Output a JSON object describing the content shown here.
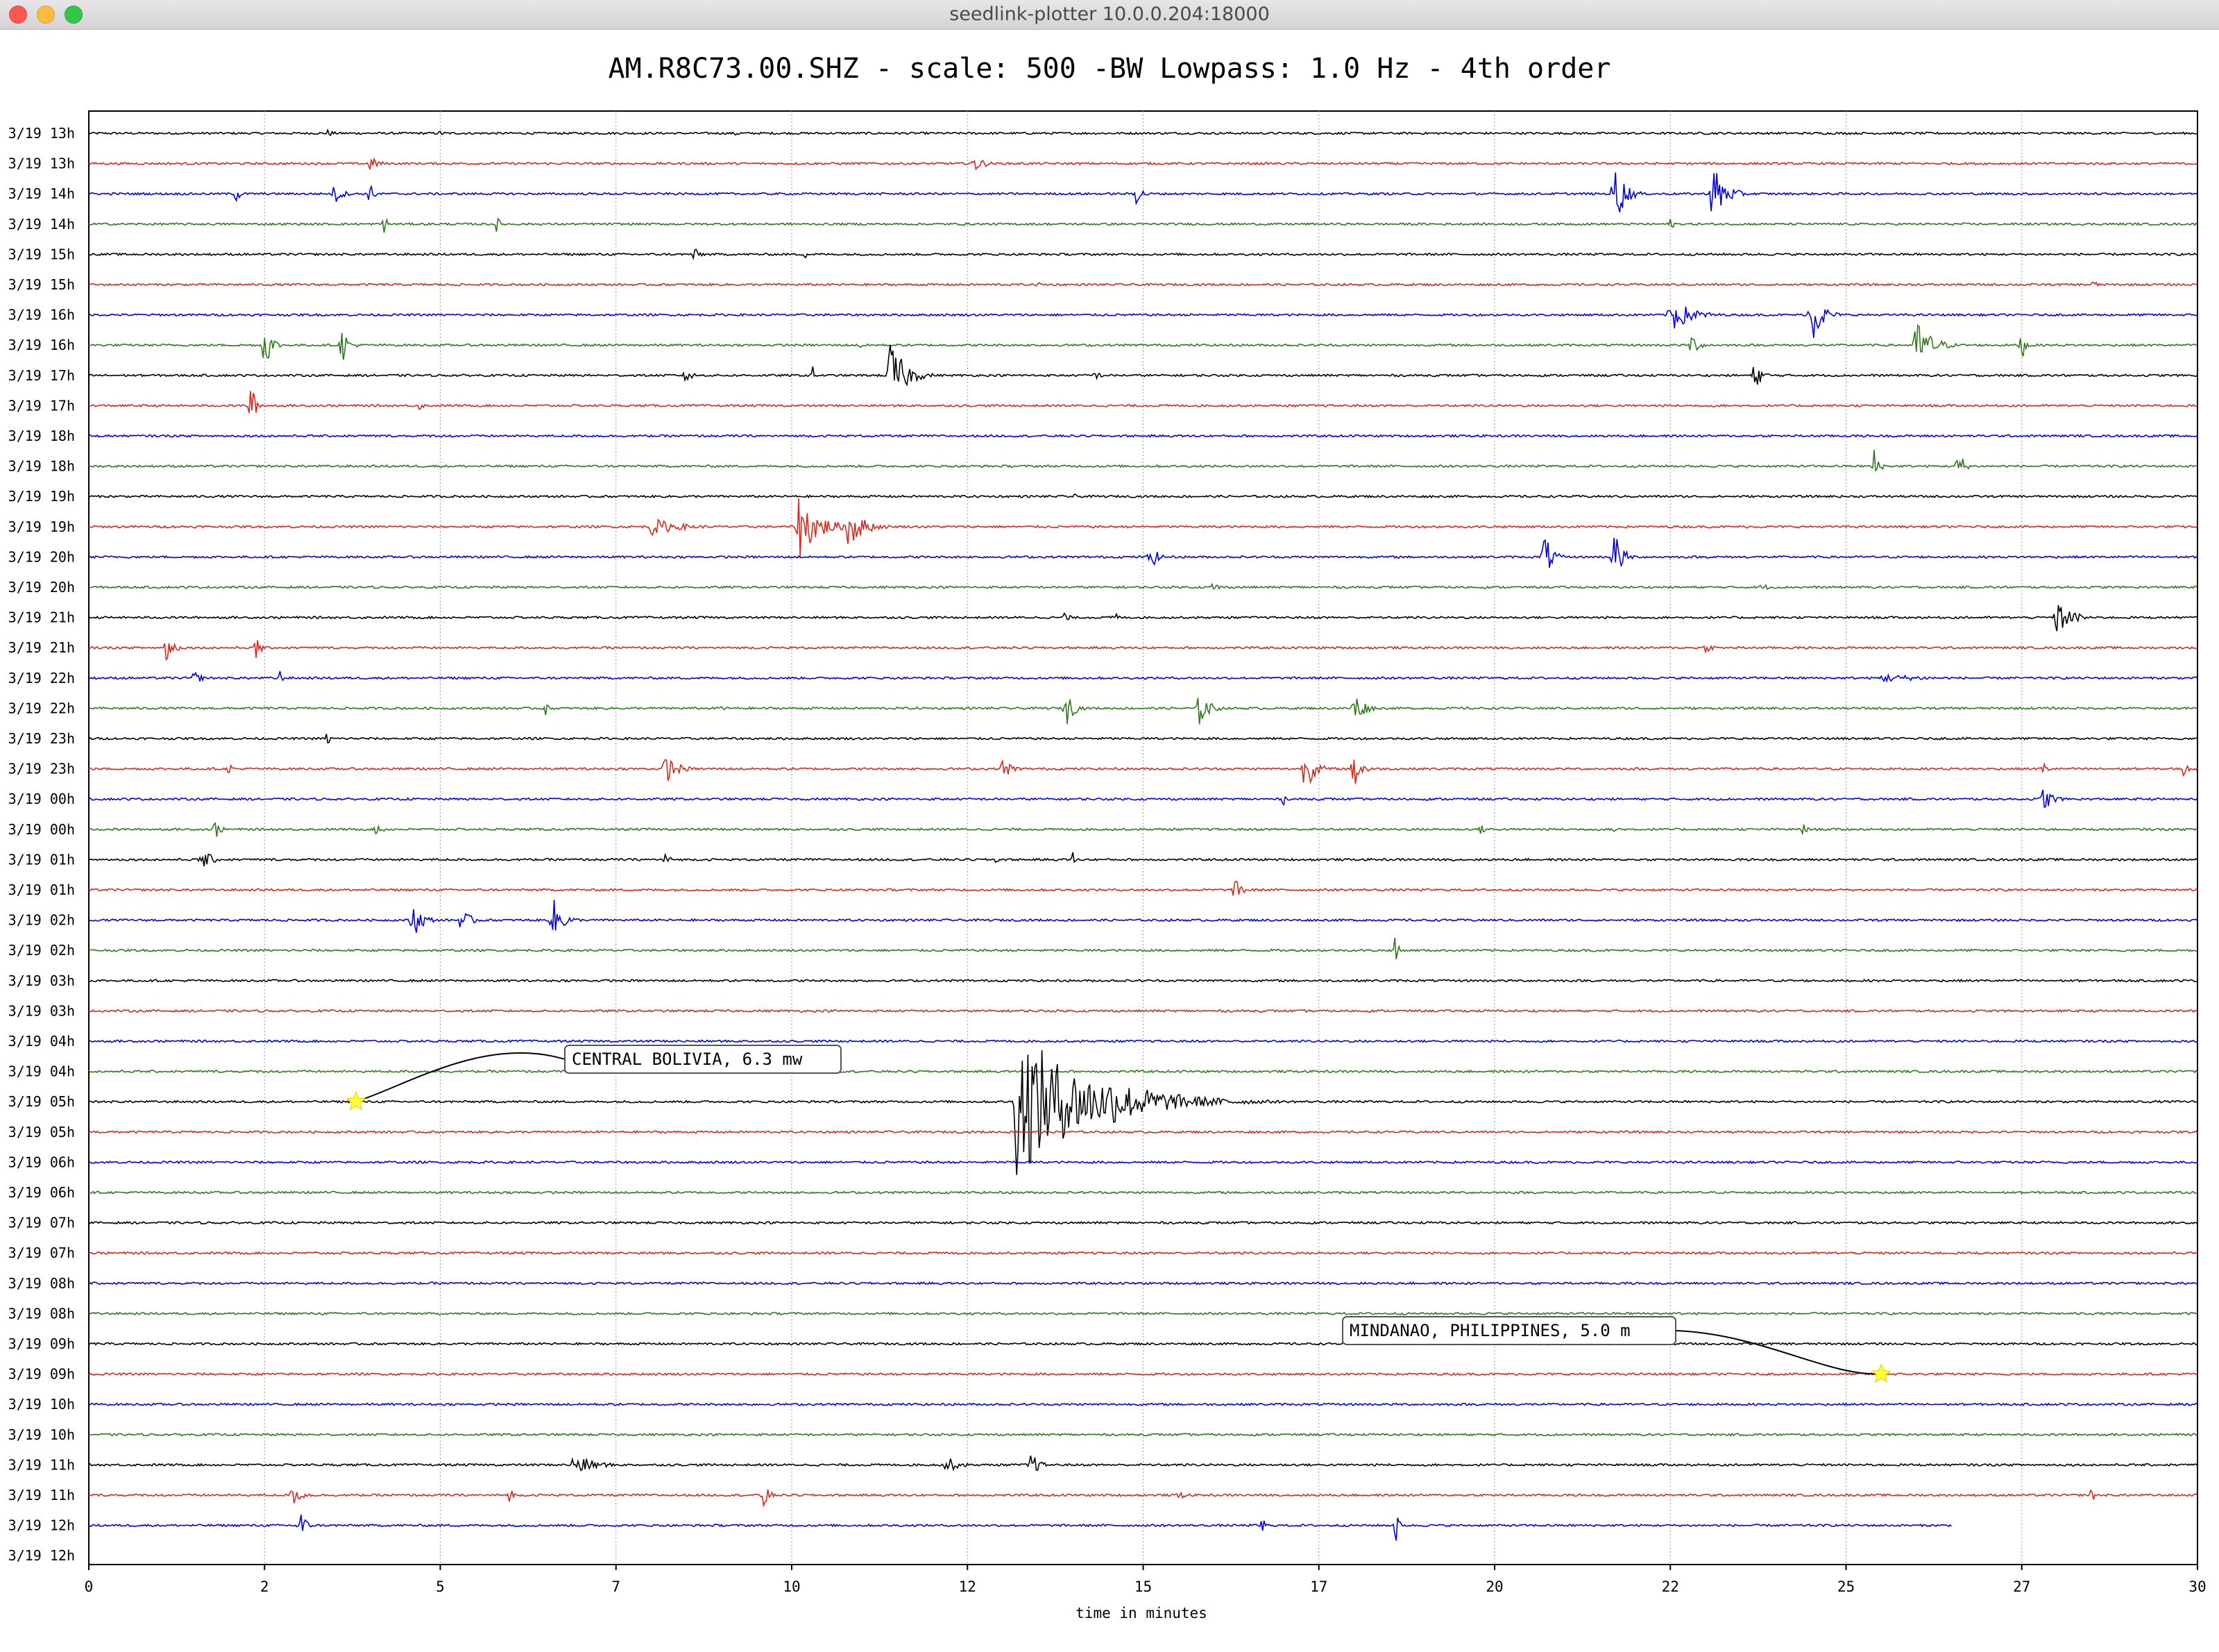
{
  "window": {
    "title": "seedlink-plotter 10.0.0.204:18000",
    "traffic_lights": [
      {
        "name": "close-button",
        "color": "#fc5753"
      },
      {
        "name": "minimize-button",
        "color": "#fdbc40"
      },
      {
        "name": "zoom-button",
        "color": "#33c748"
      }
    ]
  },
  "chart_data": {
    "type": "line",
    "title": "AM.R8C73.00.SHZ - scale: 500 -BW Lowpass: 1.0 Hz - 4th order",
    "xlabel": "time in minutes",
    "ylabel": "",
    "xlim": [
      0,
      30
    ],
    "x_tick_labels": [
      "0",
      "2",
      "5",
      "7",
      "10",
      "12",
      "15",
      "17",
      "20",
      "22",
      "25",
      "27",
      "30"
    ],
    "x_tick_values": [
      0,
      2.5,
      5,
      7.5,
      10,
      12.5,
      15,
      17.5,
      20,
      22.5,
      25,
      27.5,
      30
    ],
    "grid": "vertical",
    "trace_colors": [
      "#000000",
      "#d62a1e",
      "#0000ee",
      "#2f7a1f"
    ],
    "rows": [
      "3/19 13h",
      "3/19 13h",
      "3/19 14h",
      "3/19 14h",
      "3/19 15h",
      "3/19 15h",
      "3/19 16h",
      "3/19 16h",
      "3/19 17h",
      "3/19 17h",
      "3/19 18h",
      "3/19 18h",
      "3/19 19h",
      "3/19 19h",
      "3/19 20h",
      "3/19 20h",
      "3/19 21h",
      "3/19 21h",
      "3/19 22h",
      "3/19 22h",
      "3/19 23h",
      "3/19 23h",
      "3/19 00h",
      "3/19 00h",
      "3/19 01h",
      "3/19 01h",
      "3/19 02h",
      "3/19 02h",
      "3/19 03h",
      "3/19 03h",
      "3/19 04h",
      "3/19 04h",
      "3/19 05h",
      "3/19 05h",
      "3/19 06h",
      "3/19 06h",
      "3/19 07h",
      "3/19 07h",
      "3/19 08h",
      "3/19 08h",
      "3/19 09h",
      "3/19 09h",
      "3/19 10h",
      "3/19 10h",
      "3/19 11h",
      "3/19 11h",
      "3/19 12h",
      "3/19 12h"
    ],
    "last_row_end_minute": 26.5,
    "bursts": [
      {
        "row": 0,
        "t": 3.4,
        "a": 0.25,
        "w": 0.3
      },
      {
        "row": 0,
        "t": 5.0,
        "a": 0.2,
        "w": 0.2
      },
      {
        "row": 0,
        "t": 9.2,
        "a": 0.2,
        "w": 0.3
      },
      {
        "row": 1,
        "t": 4.0,
        "a": 0.5,
        "w": 0.4
      },
      {
        "row": 1,
        "t": 12.6,
        "a": 0.6,
        "w": 0.4
      },
      {
        "row": 2,
        "t": 2.1,
        "a": 0.6,
        "w": 0.2
      },
      {
        "row": 2,
        "t": 3.5,
        "a": 0.8,
        "w": 0.3
      },
      {
        "row": 2,
        "t": 4.0,
        "a": 0.7,
        "w": 0.2
      },
      {
        "row": 2,
        "t": 14.9,
        "a": 0.7,
        "w": 0.3
      },
      {
        "row": 2,
        "t": 21.7,
        "a": 2.4,
        "w": 0.4
      },
      {
        "row": 2,
        "t": 23.1,
        "a": 2.2,
        "w": 0.5
      },
      {
        "row": 3,
        "t": 4.2,
        "a": 0.6,
        "w": 0.2
      },
      {
        "row": 3,
        "t": 5.8,
        "a": 0.5,
        "w": 0.2
      },
      {
        "row": 3,
        "t": 22.5,
        "a": 0.4,
        "w": 0.2
      },
      {
        "row": 4,
        "t": 8.6,
        "a": 0.5,
        "w": 0.3
      },
      {
        "row": 4,
        "t": 10.2,
        "a": 0.3,
        "w": 0.1
      },
      {
        "row": 5,
        "t": 13.5,
        "a": 0.2,
        "w": 0.3
      },
      {
        "row": 5,
        "t": 28.5,
        "a": 0.3,
        "w": 0.3
      },
      {
        "row": 6,
        "t": 22.5,
        "a": 1.3,
        "w": 0.8
      },
      {
        "row": 6,
        "t": 24.5,
        "a": 2.4,
        "w": 0.4
      },
      {
        "row": 7,
        "t": 2.5,
        "a": 1.6,
        "w": 0.3
      },
      {
        "row": 7,
        "t": 3.6,
        "a": 1.2,
        "w": 0.3
      },
      {
        "row": 7,
        "t": 11.0,
        "a": 0.5,
        "w": 0.1
      },
      {
        "row": 7,
        "t": 22.8,
        "a": 0.8,
        "w": 0.3
      },
      {
        "row": 7,
        "t": 26.0,
        "a": 1.8,
        "w": 0.6
      },
      {
        "row": 7,
        "t": 27.5,
        "a": 1.0,
        "w": 0.2
      },
      {
        "row": 8,
        "t": 8.5,
        "a": 0.8,
        "w": 0.2
      },
      {
        "row": 8,
        "t": 10.3,
        "a": 0.6,
        "w": 0.1
      },
      {
        "row": 8,
        "t": 11.4,
        "a": 2.4,
        "w": 0.6
      },
      {
        "row": 8,
        "t": 14.3,
        "a": 0.3,
        "w": 0.4
      },
      {
        "row": 8,
        "t": 23.7,
        "a": 1.0,
        "w": 0.3
      },
      {
        "row": 9,
        "t": 2.3,
        "a": 1.6,
        "w": 0.2
      },
      {
        "row": 9,
        "t": 4.7,
        "a": 0.3,
        "w": 0.2
      },
      {
        "row": 11,
        "t": 25.4,
        "a": 1.2,
        "w": 0.2
      },
      {
        "row": 11,
        "t": 26.6,
        "a": 1.4,
        "w": 0.2
      },
      {
        "row": 12,
        "t": 14.0,
        "a": 0.2,
        "w": 0.3
      },
      {
        "row": 13,
        "t": 8.0,
        "a": 0.6,
        "w": 1.2
      },
      {
        "row": 13,
        "t": 10.1,
        "a": 2.2,
        "w": 0.8
      },
      {
        "row": 13,
        "t": 10.8,
        "a": 1.6,
        "w": 0.6
      },
      {
        "row": 14,
        "t": 15.1,
        "a": 0.9,
        "w": 0.3
      },
      {
        "row": 14,
        "t": 20.7,
        "a": 1.8,
        "w": 0.3
      },
      {
        "row": 14,
        "t": 21.7,
        "a": 2.0,
        "w": 0.3
      },
      {
        "row": 15,
        "t": 16.0,
        "a": 0.5,
        "w": 0.2
      },
      {
        "row": 15,
        "t": 23.8,
        "a": 0.3,
        "w": 0.3
      },
      {
        "row": 16,
        "t": 13.9,
        "a": 0.8,
        "w": 0.1
      },
      {
        "row": 16,
        "t": 14.6,
        "a": 0.7,
        "w": 0.1
      },
      {
        "row": 16,
        "t": 28.0,
        "a": 1.2,
        "w": 0.6
      },
      {
        "row": 17,
        "t": 1.1,
        "a": 1.1,
        "w": 0.3
      },
      {
        "row": 17,
        "t": 2.4,
        "a": 1.8,
        "w": 0.1
      },
      {
        "row": 17,
        "t": 23.0,
        "a": 0.3,
        "w": 0.4
      },
      {
        "row": 18,
        "t": 1.5,
        "a": 0.5,
        "w": 0.3
      },
      {
        "row": 18,
        "t": 2.7,
        "a": 1.0,
        "w": 0.1
      },
      {
        "row": 18,
        "t": 25.5,
        "a": 0.3,
        "w": 2.0
      },
      {
        "row": 19,
        "t": 6.5,
        "a": 0.5,
        "w": 0.1
      },
      {
        "row": 19,
        "t": 9.0,
        "a": 0.4,
        "w": 0.1
      },
      {
        "row": 19,
        "t": 13.9,
        "a": 1.3,
        "w": 0.3
      },
      {
        "row": 19,
        "t": 15.8,
        "a": 1.2,
        "w": 0.4
      },
      {
        "row": 19,
        "t": 18.0,
        "a": 1.2,
        "w": 0.4
      },
      {
        "row": 20,
        "t": 3.4,
        "a": 0.6,
        "w": 0.1
      },
      {
        "row": 21,
        "t": 2.0,
        "a": 0.4,
        "w": 0.2
      },
      {
        "row": 21,
        "t": 8.2,
        "a": 1.0,
        "w": 0.5
      },
      {
        "row": 21,
        "t": 13.0,
        "a": 0.7,
        "w": 0.4
      },
      {
        "row": 21,
        "t": 17.3,
        "a": 1.6,
        "w": 0.4
      },
      {
        "row": 21,
        "t": 18.0,
        "a": 1.6,
        "w": 0.3
      },
      {
        "row": 21,
        "t": 27.8,
        "a": 0.5,
        "w": 0.2
      },
      {
        "row": 21,
        "t": 29.8,
        "a": 0.5,
        "w": 0.2
      },
      {
        "row": 22,
        "t": 17.0,
        "a": 0.4,
        "w": 0.1
      },
      {
        "row": 22,
        "t": 27.8,
        "a": 0.9,
        "w": 0.4
      },
      {
        "row": 23,
        "t": 1.8,
        "a": 0.7,
        "w": 0.2
      },
      {
        "row": 23,
        "t": 4.1,
        "a": 0.6,
        "w": 0.2
      },
      {
        "row": 23,
        "t": 19.8,
        "a": 0.3,
        "w": 0.4
      },
      {
        "row": 23,
        "t": 21.7,
        "a": 0.4,
        "w": 0.2
      },
      {
        "row": 23,
        "t": 24.4,
        "a": 0.7,
        "w": 0.1
      },
      {
        "row": 24,
        "t": 1.6,
        "a": 0.8,
        "w": 0.4
      },
      {
        "row": 24,
        "t": 8.2,
        "a": 0.5,
        "w": 0.2
      },
      {
        "row": 24,
        "t": 12.9,
        "a": 0.3,
        "w": 0.3
      },
      {
        "row": 24,
        "t": 14.0,
        "a": 0.6,
        "w": 0.1
      },
      {
        "row": 25,
        "t": 16.3,
        "a": 0.7,
        "w": 0.4
      },
      {
        "row": 26,
        "t": 4.6,
        "a": 1.3,
        "w": 0.4
      },
      {
        "row": 26,
        "t": 5.3,
        "a": 0.8,
        "w": 0.4
      },
      {
        "row": 26,
        "t": 6.6,
        "a": 1.6,
        "w": 0.4
      },
      {
        "row": 27,
        "t": 18.6,
        "a": 1.4,
        "w": 0.1
      },
      {
        "row": 32,
        "t": 13.2,
        "a": 5.0,
        "w": 2.8
      },
      {
        "row": 32,
        "t": 14.5,
        "a": 1.6,
        "w": 2.5
      },
      {
        "row": 44,
        "t": 6.9,
        "a": 0.8,
        "w": 0.8
      },
      {
        "row": 44,
        "t": 12.2,
        "a": 0.6,
        "w": 0.5
      },
      {
        "row": 44,
        "t": 13.4,
        "a": 1.0,
        "w": 0.3
      },
      {
        "row": 45,
        "t": 2.9,
        "a": 0.7,
        "w": 0.4
      },
      {
        "row": 45,
        "t": 6.0,
        "a": 0.7,
        "w": 0.1
      },
      {
        "row": 45,
        "t": 9.6,
        "a": 1.1,
        "w": 0.2
      },
      {
        "row": 45,
        "t": 15.5,
        "a": 0.3,
        "w": 0.4
      },
      {
        "row": 45,
        "t": 28.5,
        "a": 0.6,
        "w": 0.1
      },
      {
        "row": 46,
        "t": 3.0,
        "a": 1.5,
        "w": 0.2
      },
      {
        "row": 46,
        "t": 16.7,
        "a": 0.8,
        "w": 0.1
      },
      {
        "row": 46,
        "t": 18.6,
        "a": 1.4,
        "w": 0.1
      }
    ],
    "annotations": [
      {
        "text": "CENTRAL BOLIVIA, 6.3 mw",
        "row": 32,
        "minute": 3.8
      },
      {
        "text": "MINDANAO, PHILIPPINES, 5.0 m",
        "row": 41,
        "minute": 25.5
      }
    ]
  }
}
